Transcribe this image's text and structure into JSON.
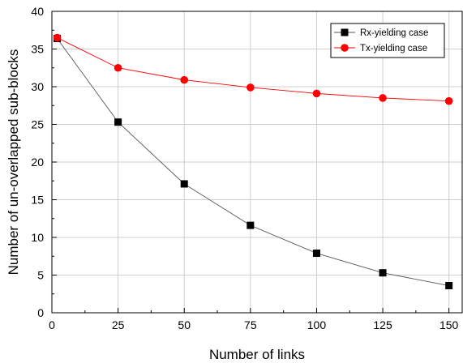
{
  "chart_data": {
    "type": "line",
    "xlabel": "Number of links",
    "ylabel": "Number of un-overlapped sub-blocks",
    "xlim": [
      0,
      155
    ],
    "ylim": [
      0,
      40
    ],
    "xticks": [
      0,
      25,
      50,
      75,
      100,
      125,
      150
    ],
    "yticks": [
      0,
      5,
      10,
      15,
      20,
      25,
      30,
      35,
      40
    ],
    "grid": true,
    "legend_position": "top-right",
    "series": [
      {
        "name": "Rx-yielding case",
        "color": "#000000",
        "line_color": "#555555",
        "marker": "square",
        "x": [
          2,
          25,
          50,
          75,
          100,
          125,
          150
        ],
        "y": [
          36.4,
          25.3,
          17.1,
          11.6,
          7.9,
          5.3,
          3.6
        ]
      },
      {
        "name": "Tx-yielding case",
        "color": "#ff0000",
        "line_color": "#ff0000",
        "marker": "circle",
        "x": [
          2,
          25,
          50,
          75,
          100,
          125,
          150
        ],
        "y": [
          36.5,
          32.5,
          30.9,
          29.9,
          29.1,
          28.5,
          28.1
        ]
      }
    ]
  }
}
